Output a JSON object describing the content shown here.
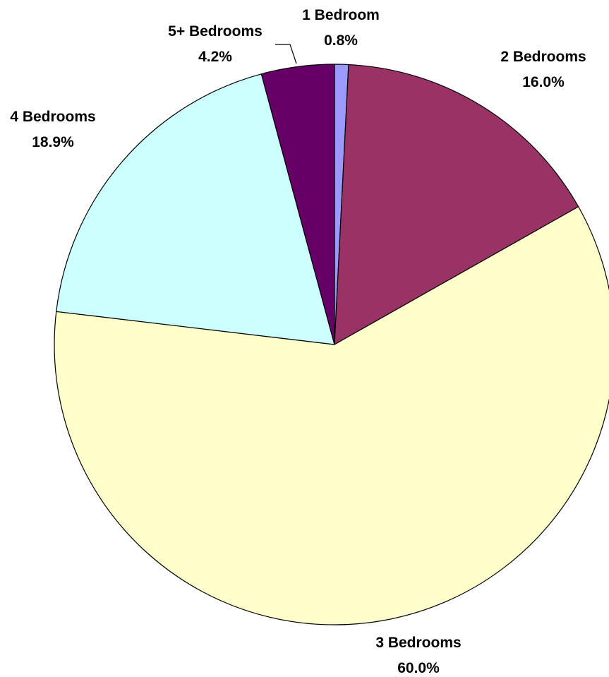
{
  "chart_data": {
    "type": "pie",
    "title": "",
    "start_angle_deg": 0,
    "direction": "clockwise",
    "legend": "none",
    "slices": [
      {
        "label": "1 Bedroom",
        "value": 0.8,
        "value_label": "0.8%",
        "color": "#9999ff"
      },
      {
        "label": "2 Bedrooms",
        "value": 16.0,
        "value_label": "16.0%",
        "color": "#993366"
      },
      {
        "label": "3 Bedrooms",
        "value": 60.0,
        "value_label": "60.0%",
        "color": "#ffffcc"
      },
      {
        "label": "4 Bedrooms",
        "value": 18.9,
        "value_label": "18.9%",
        "color": "#ccffff"
      },
      {
        "label": "5+ Bedrooms",
        "value": 4.2,
        "value_label": "4.2%",
        "color": "#660066"
      }
    ]
  }
}
